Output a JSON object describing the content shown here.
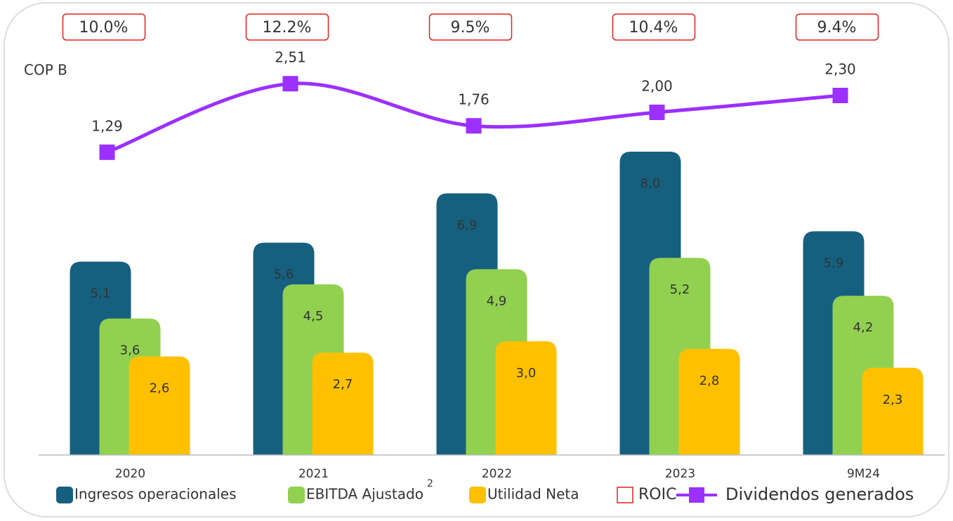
{
  "chart_data": {
    "type": "bar",
    "y_label": "COP B",
    "categories": [
      "2020",
      "2021",
      "2022",
      "2023",
      "9M24"
    ],
    "ylim": [
      0,
      12
    ],
    "y2lim": [
      -4.1,
      4
    ],
    "series": [
      {
        "name": "Ingresos operacionales",
        "color": "#16607f",
        "values": [
          5.1,
          5.6,
          6.9,
          8.0,
          5.9
        ],
        "value_labels": [
          "5,1",
          "5,6",
          "6,9",
          "8,0",
          "5,9"
        ]
      },
      {
        "name": "EBITDA Ajustado",
        "note": "2",
        "color": "#92d050",
        "values": [
          3.6,
          4.5,
          4.9,
          5.2,
          4.2
        ],
        "value_labels": [
          "3,6",
          "4,5",
          "4,9",
          "5,2",
          "4,2"
        ]
      },
      {
        "name": "Utilidad Neta",
        "color": "#ffc000",
        "values": [
          2.6,
          2.7,
          3.0,
          2.8,
          2.3
        ],
        "value_labels": [
          "2,6",
          "2,7",
          "3,0",
          "2,8",
          "2,3"
        ]
      },
      {
        "name": "Dividendos generados",
        "type": "line",
        "axis": "y2",
        "color": "#9b30ff",
        "values": [
          1.29,
          2.51,
          1.76,
          2.0,
          2.3
        ],
        "value_labels": [
          "1,29",
          "2,51",
          "1,76",
          "2,00",
          "2,30"
        ]
      }
    ],
    "roic": {
      "name": "ROIC",
      "color": "#e02020",
      "values": [
        10.0,
        12.2,
        9.5,
        10.4,
        9.4
      ],
      "value_labels": [
        "10.0%",
        "12.2%",
        "9.5%",
        "10.4%",
        "9.4%"
      ]
    }
  }
}
